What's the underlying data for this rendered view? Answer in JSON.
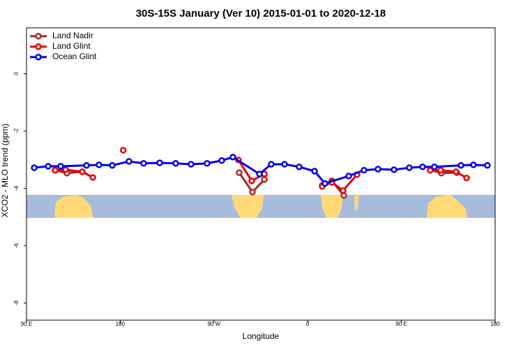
{
  "chart_data": {
    "type": "line",
    "title": "30S-15S January (Ver 10)   2015-01-01 to 2020-12-18",
    "x_label": "Longitude",
    "y_label": "XCO2 - MLO trend (ppm)",
    "xlim": [
      90,
      540
    ],
    "ylim": [
      -8.6,
      1.6
    ],
    "xticks": [
      {
        "value": 90,
        "label": "90 E"
      },
      180,
      {
        "value": 270,
        "label": "90 W"
      },
      {
        "value": 360,
        "label": "0"
      },
      {
        "value": 450,
        "label": "90 E"
      },
      {
        "value": 540,
        "label": "180"
      }
    ],
    "yticks": [
      0,
      -2,
      -4,
      -6,
      -8
    ],
    "legend": "top-left",
    "series": [
      {
        "name": "Land Nadir",
        "color": "#a52a2a",
        "x": [
          117.5,
          128.8,
          143.6,
          150,
          294.2,
          307,
          318.4,
          340,
          374,
          383.3,
          394.7,
          440,
          477.7,
          488.4,
          503.2
        ],
        "values": [
          -3.37,
          -3.47,
          -3.42,
          null,
          -3.45,
          -4.13,
          -3.69,
          null,
          -3.9,
          -3.74,
          -4.25,
          null,
          -3.35,
          -3.47,
          -3.45
        ]
      },
      {
        "name": "Land Glint",
        "color": "#e60000",
        "x": [
          117.5,
          127.5,
          143.6,
          153.7,
          160,
          182.9,
          200,
          293.5,
          306.3,
          318.4,
          340,
          374,
          383.3,
          394,
          407.4,
          440,
          477.7,
          487.7,
          502.5,
          512.6
        ],
        "values": [
          -3.37,
          -3.35,
          -3.42,
          -3.62,
          null,
          -2.67,
          null,
          -3.01,
          -3.74,
          -3.5,
          null,
          -3.93,
          -3.79,
          -4.08,
          -3.52,
          null,
          -3.37,
          -3.37,
          -3.42,
          -3.64
        ]
      },
      {
        "name": "Ocean Glint",
        "color": "#0000ee",
        "x": [
          97.4,
          110.8,
          122.8,
          147.6,
          159.6,
          172.4,
          188.4,
          202.5,
          217.9,
          233.3,
          248,
          263.4,
          277.5,
          288.2,
          313.7,
          325,
          337.8,
          351.8,
          366.6,
          376.6,
          399.4,
          414.1,
          427.5,
          442.9,
          457.6,
          470.4,
          481.7,
          507.2,
          519.2,
          532.6
        ],
        "values": [
          -3.28,
          -3.23,
          -3.23,
          -3.2,
          -3.18,
          -3.2,
          -3.06,
          -3.13,
          -3.11,
          -3.13,
          -3.16,
          -3.13,
          -3.03,
          -2.91,
          -3.5,
          -3.16,
          -3.16,
          -3.25,
          -3.4,
          -3.83,
          -3.57,
          -3.37,
          -3.33,
          -3.35,
          -3.28,
          -3.25,
          -3.25,
          -3.2,
          -3.18,
          -3.2
        ]
      }
    ]
  }
}
